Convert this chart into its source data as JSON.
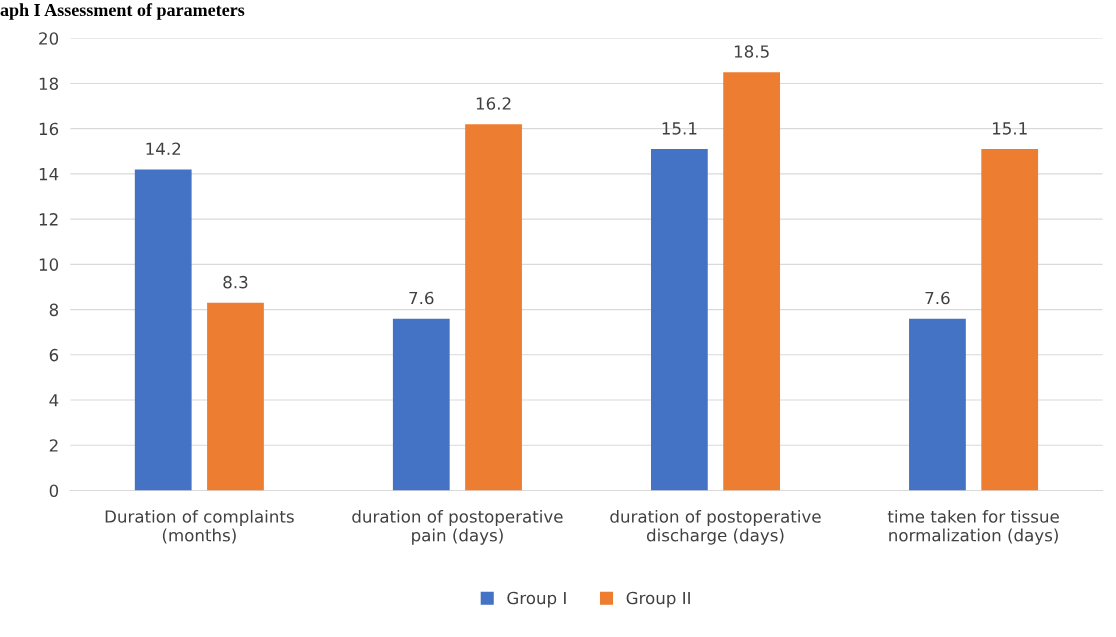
{
  "chart_data": {
    "type": "bar",
    "title": "aph I Assessment of parameters",
    "categories": [
      "Duration of complaints (months)",
      "duration of postoperative pain (days)",
      "duration of postoperative discharge (days)",
      "time taken for tissue normalization (days)"
    ],
    "series": [
      {
        "name": "Group I",
        "color": "#4472c4",
        "values": [
          14.2,
          7.6,
          15.1,
          7.6
        ]
      },
      {
        "name": "Group II",
        "color": "#ed7d31",
        "values": [
          8.3,
          16.2,
          18.5,
          15.1
        ]
      }
    ],
    "ylim": [
      0,
      20
    ],
    "yticks": [
      0,
      2,
      4,
      6,
      8,
      10,
      12,
      14,
      16,
      18,
      20
    ],
    "grid": "y",
    "legend": "bottom",
    "data_labels": true
  }
}
